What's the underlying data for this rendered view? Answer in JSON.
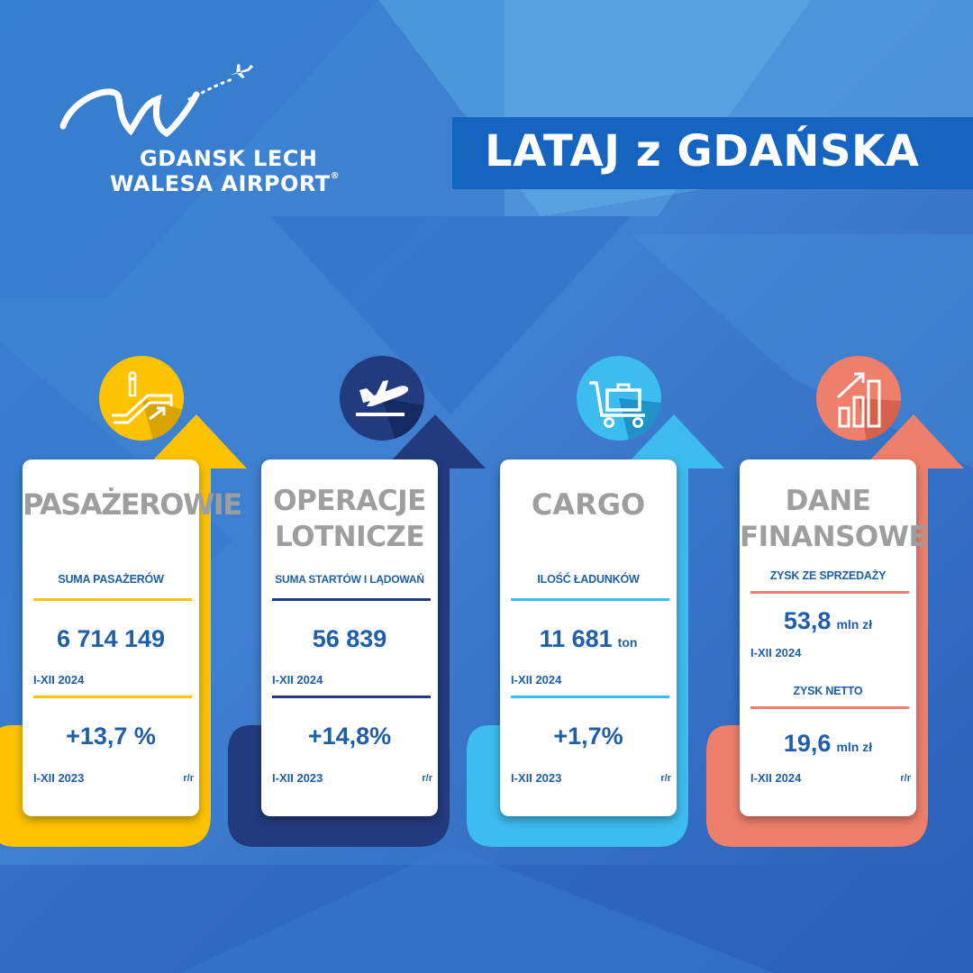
{
  "logo": {
    "line1": "GDANSK LECH",
    "line2": "WALESA AIRPORT",
    "registered": "®"
  },
  "title": "LATAJ z GDAŃSKA",
  "colors": {
    "background_light": "#4f9fdf",
    "background_dark": "#2a64b8",
    "banner": "#1565c0",
    "text_blue": "#1f5fa8",
    "yellow": "#fdc300",
    "navy": "#223a7e",
    "light_blue": "#3dbcef",
    "salmon": "#ee7f6b"
  },
  "panels": [
    {
      "id": "passengers",
      "icon": "escalator-icon",
      "accent": "#fdc300",
      "title_lines": [
        "PASAŻEROWIE"
      ],
      "metric_label": "SUMA PASAŻERÓW",
      "value": "6 714 149",
      "value_unit": "",
      "period": "I-XII 2024",
      "change": "+13,7 %",
      "compare_period": "I-XII 2023",
      "yoy": "r/r"
    },
    {
      "id": "operations",
      "icon": "airplane-takeoff-icon",
      "accent": "#223a7e",
      "title_lines": [
        "OPERACJE",
        "LOTNICZE"
      ],
      "metric_label": "SUMA STARTÓW I LĄDOWAŃ",
      "value": "56 839",
      "value_unit": "",
      "period": "I-XII 2024",
      "change": "+14,8%",
      "compare_period": "I-XII 2023",
      "yoy": "r/r"
    },
    {
      "id": "cargo",
      "icon": "luggage-trolley-icon",
      "accent": "#3dbcef",
      "title_lines": [
        "CARGO"
      ],
      "metric_label": "ILOŚĆ ŁADUNKÓW",
      "value": "11 681",
      "value_unit": "ton",
      "period": "I-XII 2024",
      "change": "+1,7%",
      "compare_period": "I-XII 2023",
      "yoy": "r/r"
    },
    {
      "id": "finance",
      "icon": "growth-chart-icon",
      "accent": "#ee7f6b",
      "title_lines": [
        "DANE",
        "FINANSOWE"
      ],
      "metric1_label": "ZYSK ZE SPRZEDAŻY",
      "value1": "53,8",
      "value1_unit": "mln zł",
      "period1": "I-XII 2024",
      "metric2_label": "ZYSK NETTO",
      "value2": "19,6",
      "value2_unit": "mln zł",
      "period2": "I-XII 2024",
      "yoy": "r/r"
    }
  ]
}
